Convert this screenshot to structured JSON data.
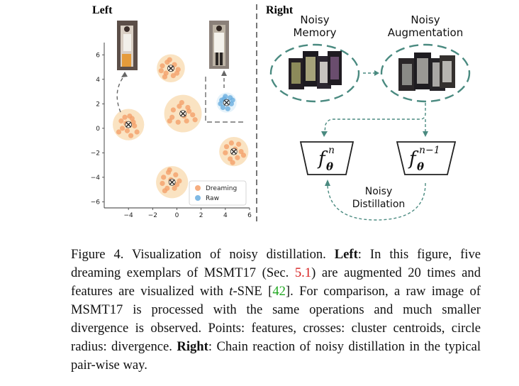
{
  "panels": {
    "left_label": "Left",
    "right_label": "Right"
  },
  "chart_data": {
    "type": "scatter",
    "xlim": [
      -6,
      6
    ],
    "ylim": [
      -6.5,
      7
    ],
    "xticks": [
      "−4",
      "−2",
      "0",
      "2",
      "4",
      "6"
    ],
    "yticks": [
      "6",
      "4",
      "2",
      "0",
      "−2",
      "−4",
      "−6"
    ],
    "legend": {
      "placement": "bottom-right",
      "entries": [
        "Dreaming",
        "Raw"
      ]
    },
    "colors": {
      "dreaming": "#f4a06a",
      "raw": "#6aaee0",
      "halo": "#f8d7a8",
      "raw_halo": "#d6ebf8"
    },
    "series": [
      {
        "name": "Dreaming",
        "clusters": [
          {
            "centroid": [
              -4.0,
              0.3
            ],
            "points": [
              [
                -4.6,
                0.6
              ],
              [
                -4.3,
                0.9
              ],
              [
                -3.7,
                0.8
              ],
              [
                -3.5,
                0.2
              ],
              [
                -4.1,
                -0.2
              ],
              [
                -4.5,
                0.0
              ],
              [
                -3.3,
                -0.3
              ],
              [
                -3.8,
                -0.6
              ],
              [
                -4.8,
                -0.3
              ],
              [
                -3.6,
                0.5
              ],
              [
                -4.2,
                0.4
              ],
              [
                -3.9,
                1.0
              ]
            ]
          },
          {
            "centroid": [
              -0.5,
              4.9
            ],
            "points": [
              [
                -1.2,
                5.1
              ],
              [
                -0.8,
                5.4
              ],
              [
                -0.2,
                5.2
              ],
              [
                0.1,
                4.8
              ],
              [
                -0.3,
                4.3
              ],
              [
                -0.9,
                4.5
              ],
              [
                -1.3,
                4.7
              ],
              [
                -0.6,
                5.6
              ],
              [
                0.0,
                4.5
              ],
              [
                -0.4,
                4.9
              ],
              [
                -1.0,
                4.2
              ]
            ]
          },
          {
            "centroid": [
              0.5,
              1.2
            ],
            "points": [
              [
                -0.3,
                1.5
              ],
              [
                0.2,
                1.8
              ],
              [
                0.9,
                1.7
              ],
              [
                1.3,
                1.1
              ],
              [
                0.8,
                0.6
              ],
              [
                0.1,
                0.5
              ],
              [
                -0.4,
                0.9
              ],
              [
                1.0,
                1.4
              ],
              [
                0.4,
                2.1
              ],
              [
                -0.6,
                0.6
              ],
              [
                0.6,
                1.0
              ],
              [
                1.5,
                0.7
              ]
            ]
          },
          {
            "centroid": [
              4.7,
              -1.9
            ],
            "points": [
              [
                4.1,
                -1.5
              ],
              [
                4.5,
                -1.2
              ],
              [
                5.1,
                -1.3
              ],
              [
                5.3,
                -1.9
              ],
              [
                5.0,
                -2.4
              ],
              [
                4.4,
                -2.5
              ],
              [
                4.0,
                -2.0
              ],
              [
                4.8,
                -1.7
              ],
              [
                5.5,
                -2.2
              ],
              [
                4.6,
                -2.8
              ]
            ]
          },
          {
            "centroid": [
              -0.4,
              -4.4
            ],
            "points": [
              [
                -1.1,
                -4.0
              ],
              [
                -0.7,
                -3.6
              ],
              [
                -0.1,
                -3.8
              ],
              [
                0.2,
                -4.3
              ],
              [
                -0.2,
                -4.9
              ],
              [
                -0.8,
                -4.9
              ],
              [
                -1.2,
                -4.5
              ],
              [
                -0.5,
                -4.2
              ],
              [
                -0.6,
                -3.4
              ],
              [
                0.0,
                -4.6
              ],
              [
                -1.0,
                -5.1
              ]
            ]
          }
        ]
      },
      {
        "name": "Raw",
        "clusters": [
          {
            "centroid": [
              4.1,
              2.1
            ],
            "points": [
              [
                3.7,
                2.3
              ],
              [
                4.0,
                2.6
              ],
              [
                4.4,
                2.5
              ],
              [
                4.5,
                2.0
              ],
              [
                4.2,
                1.6
              ],
              [
                3.8,
                1.7
              ],
              [
                3.6,
                2.0
              ],
              [
                4.1,
                2.2
              ],
              [
                4.6,
                2.3
              ],
              [
                3.9,
                2.4
              ]
            ]
          }
        ]
      }
    ]
  },
  "diagram": {
    "nodes": [
      {
        "id": "memory",
        "label_lines": [
          "Noisy",
          "Memory"
        ]
      },
      {
        "id": "augmentation",
        "label_lines": [
          "Noisy",
          "Augmentation"
        ]
      },
      {
        "id": "f_n",
        "symbol": "f",
        "subscript": "θ",
        "superscript": "n"
      },
      {
        "id": "f_n_minus_1",
        "symbol": "f",
        "subscript": "θ",
        "superscript": "n−1"
      }
    ],
    "distillation_label_lines": [
      "Noisy",
      "Distillation"
    ],
    "accent": "#4a8a80"
  },
  "caption": {
    "figure_label": "Figure 4.",
    "text1": " Visualization of noisy distillation. ",
    "left_bold": "Left",
    "text2": ": In this figure, five dreaming exemplars of MSMT17 (Sec. ",
    "sec_ref": "5.1",
    "text3": ") are augmented 20 times and features are visualized with ",
    "tsne_italic": "t",
    "text4": "-SNE [",
    "cite_ref": "42",
    "text5": "]. For comparison, a raw image of MSMT17 is processed with the same operations and much smaller divergence is observed. Points: features, crosses: cluster centroids, circle radius: divergence. ",
    "right_bold": "Right",
    "text6": ": Chain reaction of noisy distillation in the typical pair-wise way."
  }
}
